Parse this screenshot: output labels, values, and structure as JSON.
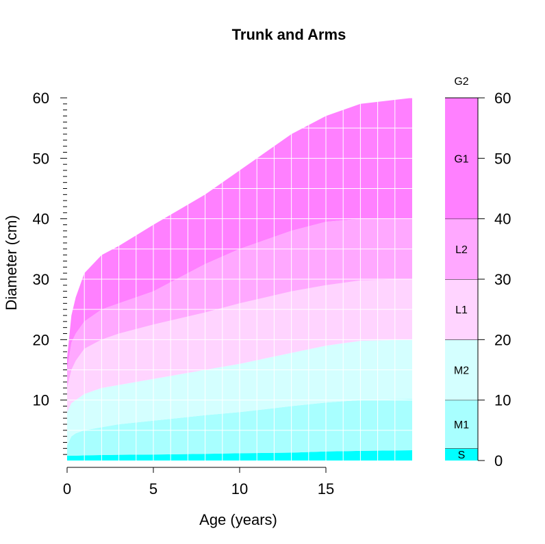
{
  "chart_data": {
    "type": "area",
    "title": "Trunk and Arms",
    "xlabel": "Age (years)",
    "ylabel": "Diameter (cm)",
    "xlim": [
      0,
      20
    ],
    "ylim": [
      0,
      60
    ],
    "x_ticks": [
      0,
      5,
      10,
      15
    ],
    "y_ticks": [
      10,
      20,
      30,
      40,
      50,
      60
    ],
    "grid": true,
    "x": [
      0,
      0.25,
      0.5,
      1,
      2,
      3,
      5,
      8,
      10,
      13,
      15,
      17,
      20
    ],
    "boundaries": [
      {
        "name": "S",
        "values": [
          0.8,
          0.8,
          0.8,
          0.85,
          0.9,
          0.95,
          1.0,
          1.1,
          1.2,
          1.3,
          1.5,
          1.6,
          1.7
        ]
      },
      {
        "name": "M1",
        "values": [
          2.5,
          4.0,
          4.5,
          5.0,
          5.5,
          6.0,
          6.6,
          7.5,
          8.0,
          9.0,
          9.6,
          10.0,
          10.2
        ]
      },
      {
        "name": "M2",
        "values": [
          8.0,
          9.5,
          10.0,
          11.0,
          12.0,
          12.5,
          13.5,
          15.0,
          16.0,
          17.8,
          19.0,
          19.8,
          20.0
        ]
      },
      {
        "name": "L1",
        "values": [
          12.0,
          15.0,
          16.5,
          18.5,
          20.0,
          21.0,
          22.5,
          24.5,
          26.0,
          28.0,
          29.0,
          29.8,
          30.0
        ]
      },
      {
        "name": "L2",
        "values": [
          15.0,
          19.5,
          21.0,
          23.0,
          25.0,
          26.0,
          28.0,
          32.5,
          35.0,
          38.0,
          39.5,
          40.0,
          40.0
        ]
      },
      {
        "name": "G1",
        "values": [
          17.0,
          24.0,
          27.0,
          31.0,
          34.0,
          35.5,
          39.0,
          44.0,
          48.0,
          54.0,
          57.0,
          59.0,
          60.0
        ]
      }
    ],
    "colors": [
      "#00ffff",
      "#a8ffff",
      "#d4ffff",
      "#ffd4ff",
      "#ffa8ff",
      "#ff80ff"
    ],
    "legend": {
      "position": "right",
      "bands": [
        {
          "label": "S",
          "from": 0,
          "to": 2,
          "color": "#00ffff"
        },
        {
          "label": "M1",
          "from": 2,
          "to": 10,
          "color": "#a8ffff"
        },
        {
          "label": "M2",
          "from": 10,
          "to": 20,
          "color": "#d4ffff"
        },
        {
          "label": "L1",
          "from": 20,
          "to": 30,
          "color": "#ffd4ff"
        },
        {
          "label": "L2",
          "from": 30,
          "to": 40,
          "color": "#ffa8ff"
        },
        {
          "label": "G1",
          "from": 40,
          "to": 60,
          "color": "#ff80ff"
        }
      ],
      "top_label": "G2",
      "ticks": [
        0,
        10,
        20,
        30,
        40,
        50,
        60
      ]
    }
  }
}
